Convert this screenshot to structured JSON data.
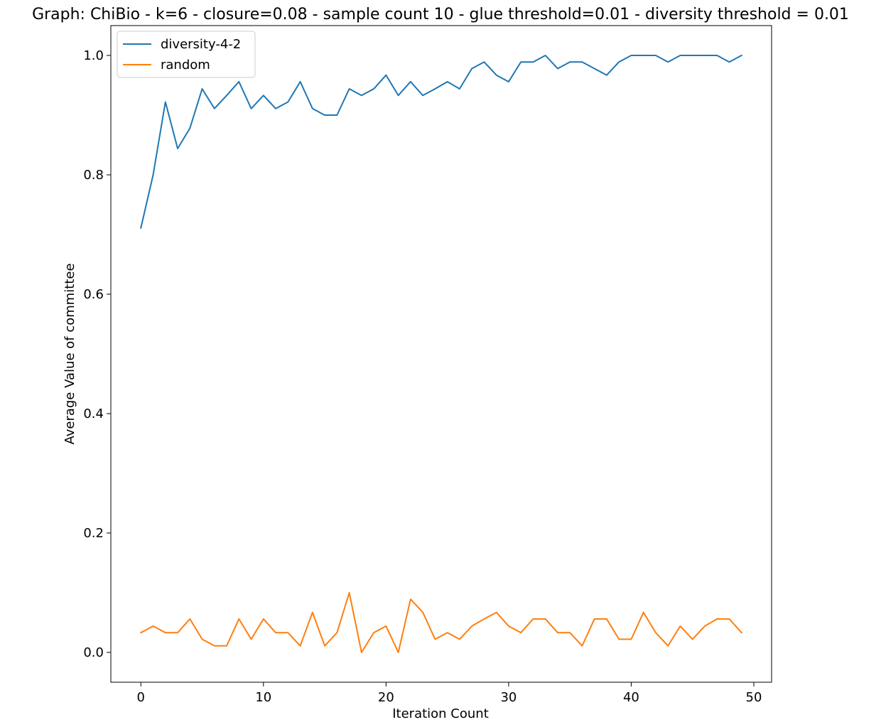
{
  "chart_data": {
    "type": "line",
    "title": "Graph: ChiBio - k=6 - closure=0.08 - sample count 10 - glue threshold=0.01 - diversity threshold = 0.01",
    "xlabel": "Iteration Count",
    "ylabel": "Average Value of committee",
    "xlim": [
      -2.45,
      51.45
    ],
    "ylim": [
      -0.05,
      1.05
    ],
    "xticks": [
      0,
      10,
      20,
      30,
      40,
      50
    ],
    "xtick_labels": [
      "0",
      "10",
      "20",
      "30",
      "40",
      "50"
    ],
    "yticks": [
      0.0,
      0.2,
      0.4,
      0.6,
      0.8,
      1.0
    ],
    "ytick_labels": [
      "0.0",
      "0.2",
      "0.4",
      "0.6",
      "0.8",
      "1.0"
    ],
    "grid": false,
    "legend_position": "upper left",
    "x": [
      0,
      1,
      2,
      3,
      4,
      5,
      6,
      7,
      8,
      9,
      10,
      11,
      12,
      13,
      14,
      15,
      16,
      17,
      18,
      19,
      20,
      21,
      22,
      23,
      24,
      25,
      26,
      27,
      28,
      29,
      30,
      31,
      32,
      33,
      34,
      35,
      36,
      37,
      38,
      39,
      40,
      41,
      42,
      43,
      44,
      45,
      46,
      47,
      48,
      49
    ],
    "series": [
      {
        "name": "diversity-4-2",
        "color": "#1f77b4",
        "values": [
          0.711,
          0.8,
          0.922,
          0.844,
          0.878,
          0.944,
          0.911,
          0.933,
          0.956,
          0.911,
          0.933,
          0.911,
          0.922,
          0.956,
          0.911,
          0.9,
          0.9,
          0.944,
          0.933,
          0.944,
          0.967,
          0.933,
          0.956,
          0.933,
          0.944,
          0.956,
          0.944,
          0.978,
          0.989,
          0.967,
          0.956,
          0.989,
          0.989,
          1.0,
          0.978,
          0.989,
          0.989,
          0.978,
          0.967,
          0.989,
          1.0,
          1.0,
          1.0,
          0.989,
          1.0,
          1.0,
          1.0,
          1.0,
          0.989,
          1.0
        ]
      },
      {
        "name": "random",
        "color": "#ff7f0e",
        "values": [
          0.033,
          0.044,
          0.033,
          0.033,
          0.056,
          0.022,
          0.011,
          0.011,
          0.056,
          0.022,
          0.056,
          0.033,
          0.033,
          0.011,
          0.067,
          0.011,
          0.033,
          0.1,
          0.0,
          0.033,
          0.044,
          0.0,
          0.089,
          0.067,
          0.022,
          0.033,
          0.022,
          0.044,
          0.056,
          0.067,
          0.044,
          0.033,
          0.056,
          0.056,
          0.033,
          0.033,
          0.011,
          0.056,
          0.056,
          0.022,
          0.022,
          0.067,
          0.033,
          0.011,
          0.044,
          0.022,
          0.044,
          0.056,
          0.056,
          0.033
        ]
      }
    ]
  }
}
